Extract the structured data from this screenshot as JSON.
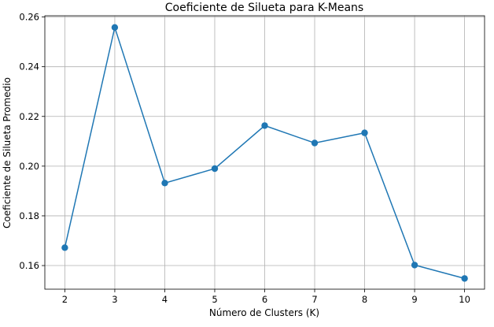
{
  "colors": {
    "series": "#1f77b4",
    "grid": "#b0b0b0",
    "background": "#ffffff"
  },
  "chart_data": {
    "type": "line",
    "title": "Coeficiente de Silueta para K-Means",
    "xlabel": "Número de Clusters (K)",
    "ylabel": "Coeficiente de Silueta Promedio",
    "x": [
      2,
      3,
      4,
      5,
      6,
      7,
      8,
      9,
      10
    ],
    "series": [
      {
        "values": [
          0.1672,
          0.2558,
          0.1932,
          0.199,
          0.2163,
          0.2093,
          0.2134,
          0.1602,
          0.1548
        ],
        "marker": "circle"
      }
    ],
    "xlim": [
      1.6,
      10.4
    ],
    "ylim": [
      0.1505,
      0.2605
    ],
    "xticks": [
      2,
      3,
      4,
      5,
      6,
      7,
      8,
      9,
      10
    ],
    "xtick_labels": [
      "2",
      "3",
      "4",
      "5",
      "6",
      "7",
      "8",
      "9",
      "10"
    ],
    "yticks": [
      0.16,
      0.18,
      0.2,
      0.22,
      0.24,
      0.26
    ],
    "ytick_labels": [
      "0.16",
      "0.18",
      "0.20",
      "0.22",
      "0.24",
      "0.26"
    ],
    "grid": true,
    "legend": "none"
  }
}
